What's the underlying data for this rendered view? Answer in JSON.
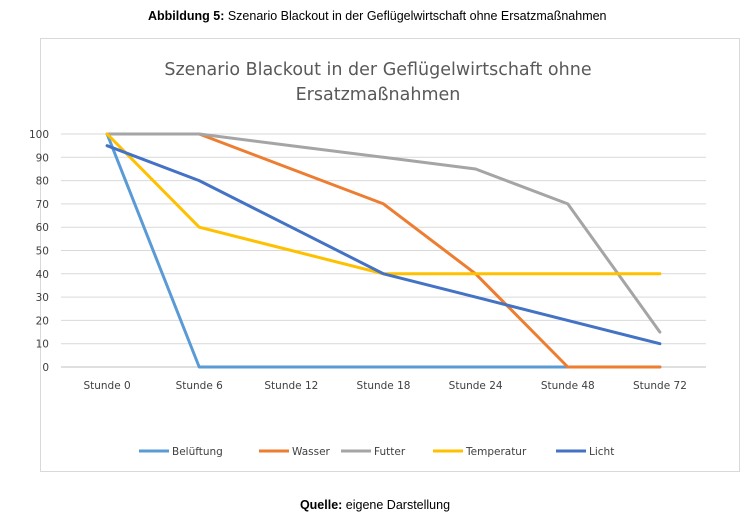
{
  "figure": {
    "caption_label": "Abbildung 5:",
    "caption_text": " Szenario Blackout in der Geflügelwirtschaft ohne Ersatzmaßnahmen",
    "source_label": "Quelle:",
    "source_text": " eigene Darstellung"
  },
  "chart_data": {
    "type": "line",
    "title_line1": "Szenario Blackout in der Geflügelwirtschaft ohne",
    "title_line2": "Ersatzmaßnahmen",
    "categories": [
      "Stunde 0",
      "Stunde 6",
      "Stunde 12",
      "Stunde 18",
      "Stunde 24",
      "Stunde 48",
      "Stunde 72"
    ],
    "ylim": [
      0,
      100
    ],
    "yticks": [
      0,
      10,
      20,
      30,
      40,
      50,
      60,
      70,
      80,
      90,
      100
    ],
    "grid": true,
    "legend_position": "bottom",
    "series": [
      {
        "name": "Belüftung",
        "color": "#5B9BD5",
        "values": [
          100,
          0,
          0,
          0,
          0,
          0,
          0
        ]
      },
      {
        "name": "Wasser",
        "color": "#ED7D31",
        "values": [
          100,
          100,
          85,
          70,
          40,
          0,
          0
        ]
      },
      {
        "name": "Futter",
        "color": "#A5A5A5",
        "values": [
          100,
          100,
          95,
          90,
          85,
          70,
          15
        ]
      },
      {
        "name": "Temperatur",
        "color": "#FFC000",
        "values": [
          100,
          60,
          50,
          40,
          40,
          40,
          40
        ]
      },
      {
        "name": "Licht",
        "color": "#4472C4",
        "values": [
          95,
          80,
          60,
          40,
          30,
          20,
          10
        ]
      }
    ]
  }
}
